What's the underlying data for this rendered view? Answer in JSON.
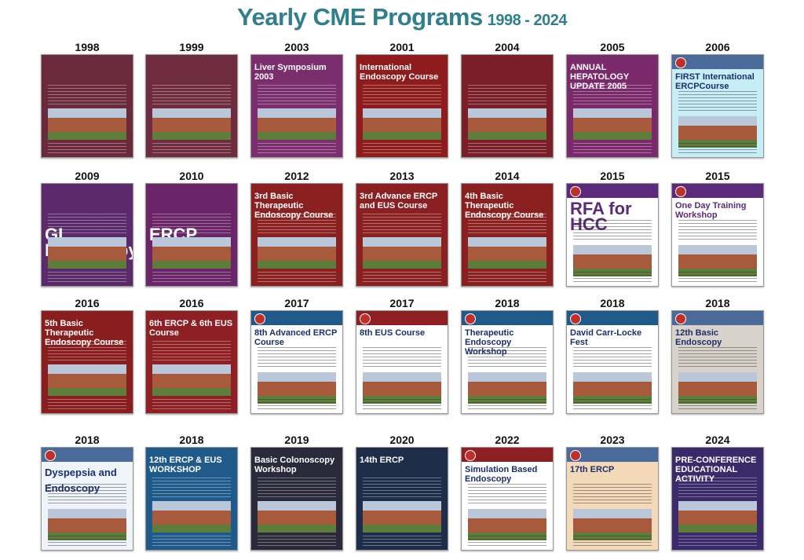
{
  "title": {
    "main": "Yearly CME Programs",
    "years": "1998 - 2024"
  },
  "posters": [
    {
      "year": "1998",
      "text": "",
      "bg": "#6a2a3c"
    },
    {
      "year": "1999",
      "text": "",
      "bg": "#6e2c3e"
    },
    {
      "year": "2003",
      "text": "Liver Symposium 2003",
      "bg": "#7a2e6e"
    },
    {
      "year": "2001",
      "text": "International Endoscopy Course",
      "bg": "#8e1c1c"
    },
    {
      "year": "2004",
      "text": "",
      "bg": "#7a1f2a"
    },
    {
      "year": "2005",
      "text": "ANNUAL HEPATOLOGY UPDATE 2005",
      "bg": "#7a2a6a"
    },
    {
      "year": "2006",
      "text": "FIRST International ERCPCourse",
      "bg": "#c7eef7"
    },
    {
      "year": "2009",
      "text": "GI Endoscopy",
      "bg": "#5a2a6a"
    },
    {
      "year": "2010",
      "text": "ERCP",
      "bg": "#6a2568"
    },
    {
      "year": "2012",
      "text": "3rd Basic Therapeutic Endoscopy Course",
      "bg": "#8a2020"
    },
    {
      "year": "2013",
      "text": "3rd Advance ERCP and EUS Course",
      "bg": "#8a2022"
    },
    {
      "year": "2014",
      "text": "4th Basic Therapeutic Endoscopy Course",
      "bg": "#8a2020"
    },
    {
      "year": "2015",
      "text": "RFA for HCC",
      "bg": "#ffffff"
    },
    {
      "year": "2015",
      "text": "One Day Training Workshop",
      "bg": "#ffffff"
    },
    {
      "year": "2016",
      "text": "5th Basic Therapeutic Endoscopy Course",
      "bg": "#8a1e1e"
    },
    {
      "year": "2016",
      "text": "6th ERCP & 6th EUS Course",
      "bg": "#8e1f22"
    },
    {
      "year": "2017",
      "text": "8th Advanced ERCP Course",
      "bg": "#ffffff"
    },
    {
      "year": "2017",
      "text": "8th EUS Course",
      "bg": "#ffffff"
    },
    {
      "year": "2018",
      "text": "Therapeutic Endoscopy Workshop",
      "bg": "#ffffff"
    },
    {
      "year": "2018",
      "text": "David Carr-Locke Fest",
      "bg": "#ffffff"
    },
    {
      "year": "2018",
      "text": "12th Basic Endoscopy",
      "bg": "#d8d2ca"
    },
    {
      "year": "2018",
      "text": "Dyspepsia and Endoscopy",
      "bg": "#eef4fa"
    },
    {
      "year": "2018",
      "text": "12th ERCP & EUS WORKSHOP",
      "bg": "#1f5a8a"
    },
    {
      "year": "2019",
      "text": "Basic Colonoscopy Workshop",
      "bg": "#2a2a3a"
    },
    {
      "year": "2020",
      "text": "14th ERCP",
      "bg": "#1e2e4a"
    },
    {
      "year": "2022",
      "text": "Simulation Based Endoscopy",
      "bg": "#ffffff"
    },
    {
      "year": "2023",
      "text": "17th ERCP",
      "bg": "#f3d9b8"
    },
    {
      "year": "2024",
      "text": "PRE-CONFERENCE EDUCATIONAL ACTIVITY",
      "bg": "#3a2a6a"
    }
  ]
}
